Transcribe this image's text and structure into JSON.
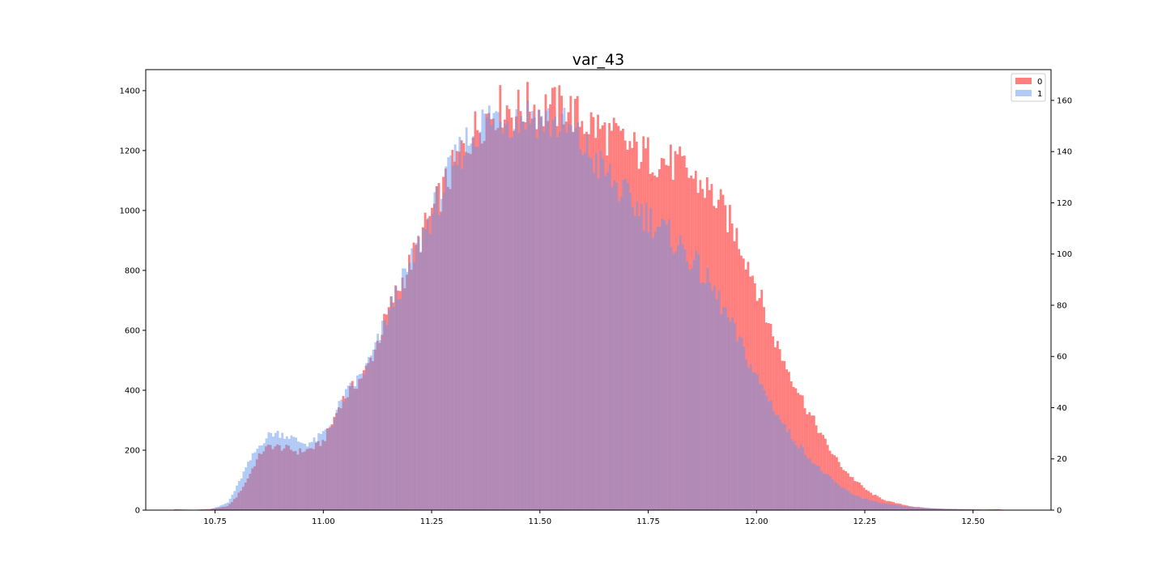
{
  "chart_data": {
    "type": "bar",
    "subtype": "overlaid-histogram-dual-axis",
    "title": "var_43",
    "xlabel": "",
    "ylabel_left": "",
    "ylabel_right": "",
    "xlim": [
      10.59,
      12.68
    ],
    "ylim_left": [
      0,
      1470
    ],
    "ylim_right": [
      0,
      172
    ],
    "xticks": [
      10.75,
      11.0,
      11.25,
      11.5,
      11.75,
      12.0,
      12.25,
      12.5
    ],
    "xtick_labels": [
      "10.75",
      "11.00",
      "11.25",
      "11.50",
      "11.75",
      "12.00",
      "12.25",
      "12.50"
    ],
    "yticks_left": [
      0,
      200,
      400,
      600,
      800,
      1000,
      1200,
      1400
    ],
    "yticks_left_labels": [
      "0",
      "200",
      "400",
      "600",
      "800",
      "1000",
      "1200",
      "1400"
    ],
    "yticks_right": [
      0,
      20,
      40,
      60,
      80,
      100,
      120,
      140,
      160
    ],
    "yticks_right_labels": [
      "0",
      "20",
      "40",
      "60",
      "80",
      "100",
      "120",
      "140",
      "160"
    ],
    "grid": false,
    "legend_position": "top-right",
    "bin_width": 0.00525,
    "series": [
      {
        "name": "0",
        "axis": "left",
        "color": "#ff0000",
        "alpha": 0.5,
        "points": [
          [
            10.655,
            3
          ],
          [
            10.7,
            1
          ],
          [
            10.74,
            4
          ],
          [
            10.76,
            8
          ],
          [
            10.78,
            14
          ],
          [
            10.8,
            45
          ],
          [
            10.82,
            90
          ],
          [
            10.84,
            150
          ],
          [
            10.86,
            200
          ],
          [
            10.88,
            215
          ],
          [
            10.9,
            210
          ],
          [
            10.92,
            205
          ],
          [
            10.94,
            195
          ],
          [
            10.96,
            200
          ],
          [
            10.98,
            210
          ],
          [
            11.0,
            230
          ],
          [
            11.02,
            290
          ],
          [
            11.04,
            360
          ],
          [
            11.06,
            395
          ],
          [
            11.08,
            430
          ],
          [
            11.1,
            470
          ],
          [
            11.12,
            540
          ],
          [
            11.14,
            620
          ],
          [
            11.16,
            700
          ],
          [
            11.18,
            760
          ],
          [
            11.2,
            820
          ],
          [
            11.22,
            890
          ],
          [
            11.24,
            960
          ],
          [
            11.26,
            1020
          ],
          [
            11.28,
            1080
          ],
          [
            11.3,
            1140
          ],
          [
            11.32,
            1200
          ],
          [
            11.34,
            1250
          ],
          [
            11.36,
            1290
          ],
          [
            11.38,
            1320
          ],
          [
            11.4,
            1340
          ],
          [
            11.42,
            1350
          ],
          [
            11.44,
            1330
          ],
          [
            11.46,
            1340
          ],
          [
            11.48,
            1360
          ],
          [
            11.5,
            1330
          ],
          [
            11.52,
            1350
          ],
          [
            11.54,
            1340
          ],
          [
            11.56,
            1350
          ],
          [
            11.58,
            1320
          ],
          [
            11.6,
            1300
          ],
          [
            11.62,
            1290
          ],
          [
            11.64,
            1270
          ],
          [
            11.66,
            1250
          ],
          [
            11.68,
            1240
          ],
          [
            11.7,
            1220
          ],
          [
            11.72,
            1200
          ],
          [
            11.74,
            1190
          ],
          [
            11.76,
            1180
          ],
          [
            11.78,
            1170
          ],
          [
            11.8,
            1160
          ],
          [
            11.82,
            1150
          ],
          [
            11.84,
            1130
          ],
          [
            11.86,
            1100
          ],
          [
            11.88,
            1080
          ],
          [
            11.9,
            1050
          ],
          [
            11.92,
            1010
          ],
          [
            11.94,
            960
          ],
          [
            11.96,
            900
          ],
          [
            11.98,
            830
          ],
          [
            12.0,
            750
          ],
          [
            12.02,
            660
          ],
          [
            12.04,
            580
          ],
          [
            12.06,
            510
          ],
          [
            12.08,
            450
          ],
          [
            12.1,
            390
          ],
          [
            12.12,
            330
          ],
          [
            12.14,
            280
          ],
          [
            12.16,
            225
          ],
          [
            12.18,
            180
          ],
          [
            12.2,
            140
          ],
          [
            12.22,
            110
          ],
          [
            12.24,
            85
          ],
          [
            12.26,
            60
          ],
          [
            12.28,
            45
          ],
          [
            12.3,
            32
          ],
          [
            12.32,
            24
          ],
          [
            12.34,
            18
          ],
          [
            12.36,
            12
          ],
          [
            12.38,
            9
          ],
          [
            12.4,
            6
          ],
          [
            12.44,
            4
          ],
          [
            12.48,
            3
          ],
          [
            12.52,
            2
          ],
          [
            12.56,
            3
          ],
          [
            12.58,
            0
          ]
        ]
      },
      {
        "name": "1",
        "axis": "right",
        "color": "#6495ed",
        "alpha": 0.5,
        "points": [
          [
            10.74,
            0.5
          ],
          [
            10.76,
            1.5
          ],
          [
            10.78,
            3
          ],
          [
            10.8,
            9
          ],
          [
            10.82,
            16
          ],
          [
            10.84,
            22
          ],
          [
            10.86,
            27
          ],
          [
            10.88,
            30
          ],
          [
            10.9,
            30
          ],
          [
            10.92,
            29
          ],
          [
            10.94,
            27
          ],
          [
            10.96,
            26
          ],
          [
            10.98,
            27
          ],
          [
            11.0,
            30
          ],
          [
            11.02,
            34
          ],
          [
            11.04,
            42
          ],
          [
            11.06,
            47
          ],
          [
            11.08,
            51
          ],
          [
            11.1,
            56
          ],
          [
            11.12,
            63
          ],
          [
            11.14,
            72
          ],
          [
            11.16,
            81
          ],
          [
            11.18,
            88
          ],
          [
            11.2,
            95
          ],
          [
            11.22,
            103
          ],
          [
            11.24,
            112
          ],
          [
            11.26,
            119
          ],
          [
            11.28,
            127
          ],
          [
            11.3,
            134
          ],
          [
            11.32,
            141
          ],
          [
            11.34,
            146
          ],
          [
            11.36,
            150
          ],
          [
            11.38,
            153
          ],
          [
            11.4,
            154
          ],
          [
            11.42,
            154
          ],
          [
            11.44,
            153
          ],
          [
            11.46,
            154
          ],
          [
            11.48,
            155
          ],
          [
            11.5,
            153
          ],
          [
            11.52,
            152
          ],
          [
            11.54,
            151
          ],
          [
            11.56,
            149
          ],
          [
            11.58,
            146
          ],
          [
            11.6,
            142
          ],
          [
            11.62,
            138
          ],
          [
            11.64,
            134
          ],
          [
            11.66,
            130
          ],
          [
            11.68,
            126
          ],
          [
            11.7,
            122
          ],
          [
            11.72,
            119
          ],
          [
            11.74,
            116
          ],
          [
            11.76,
            113
          ],
          [
            11.78,
            110
          ],
          [
            11.8,
            107
          ],
          [
            11.82,
            104
          ],
          [
            11.84,
            100
          ],
          [
            11.86,
            96
          ],
          [
            11.88,
            91
          ],
          [
            11.9,
            86
          ],
          [
            11.92,
            80
          ],
          [
            11.94,
            73
          ],
          [
            11.96,
            66
          ],
          [
            11.98,
            59
          ],
          [
            12.0,
            52
          ],
          [
            12.02,
            46
          ],
          [
            12.04,
            40
          ],
          [
            12.06,
            34
          ],
          [
            12.08,
            29
          ],
          [
            12.1,
            25
          ],
          [
            12.12,
            21
          ],
          [
            12.14,
            17
          ],
          [
            12.16,
            14
          ],
          [
            12.18,
            11
          ],
          [
            12.2,
            8.5
          ],
          [
            12.22,
            6.5
          ],
          [
            12.24,
            5
          ],
          [
            12.26,
            4
          ],
          [
            12.28,
            3
          ],
          [
            12.3,
            2.5
          ],
          [
            12.32,
            2
          ],
          [
            12.34,
            1.5
          ],
          [
            12.36,
            1.2
          ],
          [
            12.4,
            0.8
          ],
          [
            12.44,
            0.5
          ],
          [
            12.5,
            0.3
          ],
          [
            12.55,
            0
          ]
        ]
      }
    ]
  }
}
